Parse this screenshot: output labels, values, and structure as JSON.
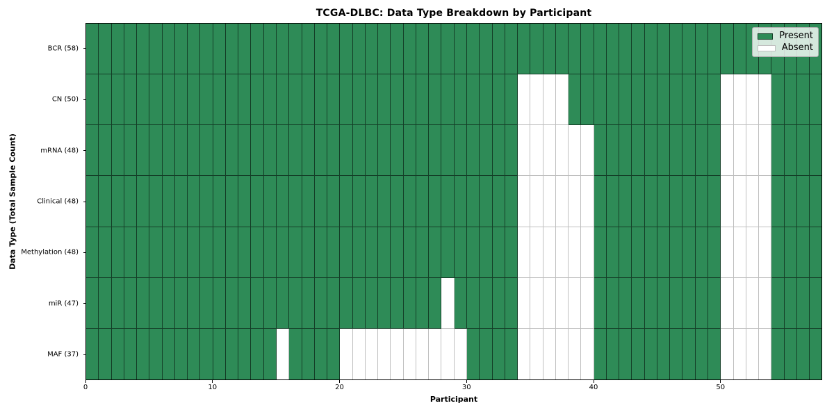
{
  "title": "TCGA-DLBC: Data Type Breakdown by Participant",
  "xlabel": "Participant",
  "ylabel": "Data Type (Total Sample Count)",
  "legend": {
    "present_label": "Present",
    "absent_label": "Absent"
  },
  "colors": {
    "present": "#2E8B57",
    "absent": "#FFFFFF",
    "cell_edge": "rgba(0,0,0,0.55)",
    "legend_bg": "rgba(255,255,255,0.8)",
    "legend_border": "#b0b0b0",
    "text": "#000000"
  },
  "chart_data": {
    "type": "heatmap",
    "title": "TCGA-DLBC: Data Type Breakdown by Participant",
    "xlabel": "Participant",
    "ylabel": "Data Type (Total Sample Count)",
    "legend_entries": [
      "Present",
      "Absent"
    ],
    "legend_position": "upper right",
    "n_participants": 58,
    "x_range": [
      0,
      58
    ],
    "x_ticks": [
      0,
      10,
      20,
      30,
      40,
      50
    ],
    "grid": true,
    "rows": [
      {
        "label": "BCR (58)",
        "data_type": "BCR",
        "total_samples": 58,
        "absent_participants": []
      },
      {
        "label": "CN (50)",
        "data_type": "CN",
        "total_samples": 50,
        "absent_participants": [
          34,
          35,
          36,
          37,
          50,
          51,
          52,
          53
        ]
      },
      {
        "label": "mRNA (48)",
        "data_type": "mRNA",
        "total_samples": 48,
        "absent_participants": [
          34,
          35,
          36,
          37,
          38,
          39,
          50,
          51,
          52,
          53
        ]
      },
      {
        "label": "Clinical (48)",
        "data_type": "Clinical",
        "total_samples": 48,
        "absent_participants": [
          34,
          35,
          36,
          37,
          38,
          39,
          50,
          51,
          52,
          53
        ]
      },
      {
        "label": "Methylation (48)",
        "data_type": "Methylation",
        "total_samples": 48,
        "absent_participants": [
          34,
          35,
          36,
          37,
          38,
          39,
          50,
          51,
          52,
          53
        ]
      },
      {
        "label": "miR (47)",
        "data_type": "miR",
        "total_samples": 47,
        "absent_participants": [
          28,
          34,
          35,
          36,
          37,
          38,
          39,
          50,
          51,
          52,
          53
        ]
      },
      {
        "label": "MAF (37)",
        "data_type": "MAF",
        "total_samples": 37,
        "absent_participants": [
          15,
          20,
          21,
          22,
          23,
          24,
          25,
          26,
          27,
          28,
          29,
          34,
          35,
          36,
          37,
          38,
          39,
          50,
          51,
          52,
          53
        ]
      }
    ]
  }
}
